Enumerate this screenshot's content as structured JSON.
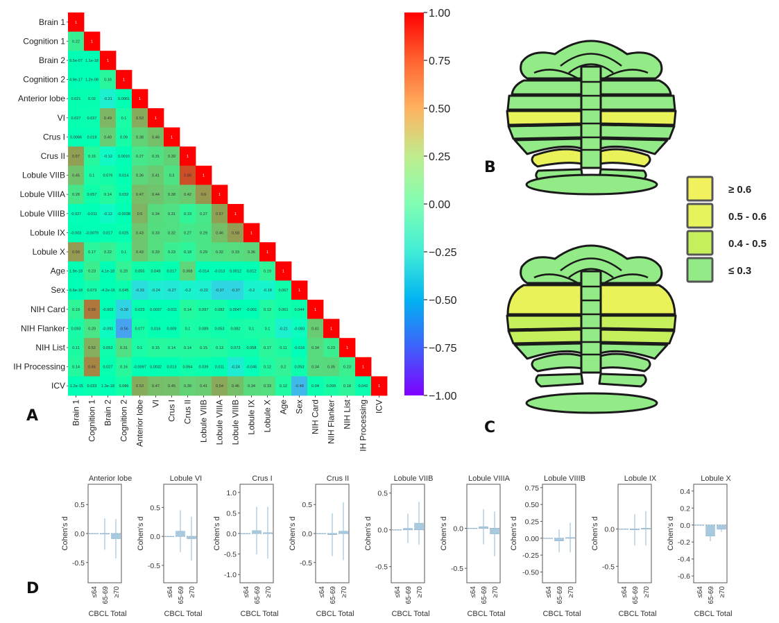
{
  "panel_labels": {
    "A": "A",
    "B": "B",
    "C": "C",
    "D": "D"
  },
  "colors": {
    "brain_outline": "#1a1a1a",
    "light_green": "#92eb86",
    "yellow_green": "#c6ef5c",
    "yellow": "#eaf25a",
    "bar_fill": "#a9c9de",
    "bar_stroke": "#8db5d0",
    "error_bar": "#a9c9de"
  },
  "legend_bins": [
    {
      "label": "≥ 0.6",
      "color": "#f2f25e"
    },
    {
      "label": "0.5 - 0.6",
      "color": "#e6f35a"
    },
    {
      "label": "0.4 - 0.5",
      "color": "#c6ef5c"
    },
    {
      "label": "≤ 0.3",
      "color": "#92eb86"
    }
  ],
  "brain_regions_B": {
    "anterior_lobe": "light green",
    "lobule_VI": "yellow",
    "crus_I": "light green",
    "crus_II": "light green",
    "lobule_VIIB": "light green",
    "lobule_VIIIA": "yellow",
    "lobule_VIIIB": "light green",
    "lobule_IX": "light green",
    "lobule_X": "light green"
  },
  "brain_regions_C": {
    "anterior_lobe": "light green",
    "lobule_VI": "yellow",
    "crus_I": "yellow green",
    "crus_II": "yellow green",
    "lobule_VIIB": "light green",
    "lobule_VIIIA": "light green",
    "lobule_VIIIB": "light green",
    "lobule_IX": "light green",
    "lobule_X": "light green"
  },
  "chart_data": [
    {
      "type": "heatmap",
      "panel": "A",
      "title": "",
      "variables": [
        "Brain 1",
        "Cognition 1",
        "Brain 2",
        "Cognition 2",
        "Anterior lobe",
        "VI",
        "Crus I",
        "Crus II",
        "Lobule VIIB",
        "Lobule VIIIA",
        "Lobule VIIIB",
        "Lobule IX",
        "Lobule X",
        "Age",
        "Sex",
        "NIH Card",
        "NIH Flanker",
        "NIH List",
        "IH Processing",
        "ICV"
      ],
      "cell_labels": [
        [
          "1"
        ],
        [
          "0.22",
          "1"
        ],
        [
          "9.5e-07",
          "1.1e-18",
          "1"
        ],
        [
          "4.9e-17",
          "1.2e-08",
          "0.16",
          "1"
        ],
        [
          "0.021",
          "0.02",
          "-0.21",
          "0.0061",
          "1"
        ],
        [
          "0.027",
          "0.037",
          "0.49",
          "0.1",
          "0.53",
          "1"
        ],
        [
          "0.0066",
          "0.019",
          "0.40",
          "0.09",
          "0.38",
          "0.46",
          "1"
        ],
        [
          "0.57",
          "0.15",
          "-0.12",
          "0.0010",
          "0.27",
          "0.31",
          "0.39",
          "1"
        ],
        [
          "0.45",
          "0.1",
          "0.076",
          "0.014",
          "0.36",
          "0.41",
          "0.3",
          "0.80",
          "1"
        ],
        [
          "0.28",
          "0.057",
          "0.14",
          "0.032",
          "0.47",
          "0.44",
          "0.38",
          "0.42",
          "0.6",
          "1"
        ],
        [
          "-0.027",
          "-0.011",
          "-0.12",
          "-0.0038",
          "0.5",
          "0.34",
          "0.31",
          "0.19",
          "0.27",
          "0.57",
          "1"
        ],
        [
          "-0.003",
          "-0.0079",
          "0.017",
          "0.025",
          "0.43",
          "0.33",
          "0.32",
          "0.27",
          "0.29",
          "0.46",
          "0.58",
          "1"
        ],
        [
          "0.59",
          "0.17",
          "0.22",
          "0.1",
          "0.43",
          "0.33",
          "0.23",
          "0.18",
          "0.29",
          "0.32",
          "0.33",
          "0.36",
          "1"
        ],
        [
          "1.9e-18",
          "0.23",
          "4.1e-18",
          "0.20",
          "0.055",
          "0.049",
          "0.017",
          "0.368",
          "-0.014",
          "-0.013",
          "0.0012",
          "0.012",
          "0.19",
          "1"
        ],
        [
          "6.6e-18",
          "0.073",
          "-4.2e-16",
          "0.045",
          "-0.33",
          "-0.24",
          "-0.27",
          "-0.2",
          "-0.22",
          "-0.37",
          "-0.37",
          "-0.2",
          "-0.18",
          "0.067",
          "1"
        ],
        [
          "0.19",
          "0.69",
          "-0.003",
          "-0.38",
          "0.023",
          "0.0037",
          "-0.011",
          "0.14",
          "0.097",
          "0.082",
          "0.0047",
          "-0.001",
          "0.12",
          "0.061",
          "0.044",
          "1"
        ],
        [
          "0.093",
          "0.29",
          "-0.091",
          "-0.56",
          "0.077",
          "0.016",
          "0.009",
          "0.1",
          "0.089",
          "0.053",
          "0.082",
          "0.1",
          "0.1",
          "-0.21",
          "-0.083",
          "0.41",
          "1"
        ],
        [
          "0.11",
          "0.52",
          "0.053",
          "0.31",
          "0.1",
          "0.15",
          "0.14",
          "0.14",
          "0.15",
          "0.13",
          "0.073",
          "0.058",
          "0.17",
          "0.11",
          "-0.016",
          "0.34",
          "0.23",
          "1"
        ],
        [
          "0.14",
          "0.65",
          "0.027",
          "0.16",
          "-0.0097",
          "0.0032",
          "0.013",
          "0.064",
          "0.039",
          "0.011",
          "-0.24",
          "-0.045",
          "0.12",
          "0.2",
          "0.053",
          "0.34",
          "0.35",
          "0.23",
          "1"
        ],
        [
          "-1.2e-15",
          "0.033",
          "1.3e-18",
          "0.086",
          "0.53",
          "0.47",
          "0.45",
          "0.39",
          "0.41",
          "0.54",
          "0.46",
          "0.34",
          "0.33",
          "0.12",
          "-0.48",
          "0.04",
          "0.095",
          "0.18",
          "0.042",
          "1"
        ]
      ],
      "cell_values": [
        [
          1
        ],
        [
          0.22,
          1
        ],
        [
          0,
          0,
          1
        ],
        [
          0,
          0,
          0.16,
          1
        ],
        [
          0.021,
          0.02,
          -0.21,
          0.0061,
          1
        ],
        [
          0.027,
          0.037,
          0.49,
          0.1,
          0.53,
          1
        ],
        [
          0.0066,
          0.019,
          0.4,
          0.09,
          0.38,
          0.46,
          1
        ],
        [
          0.57,
          0.15,
          -0.12,
          0.001,
          0.27,
          0.31,
          0.39,
          1
        ],
        [
          0.45,
          0.1,
          0.076,
          0.014,
          0.36,
          0.41,
          0.3,
          0.8,
          1
        ],
        [
          0.28,
          0.057,
          0.14,
          0.032,
          0.47,
          0.44,
          0.38,
          0.42,
          0.6,
          1
        ],
        [
          -0.027,
          -0.011,
          -0.12,
          -0.0038,
          0.5,
          0.34,
          0.31,
          0.19,
          0.27,
          0.57,
          1
        ],
        [
          -0.003,
          -0.0079,
          0.017,
          0.025,
          0.43,
          0.33,
          0.32,
          0.27,
          0.29,
          0.46,
          0.58,
          1
        ],
        [
          0.59,
          0.17,
          0.22,
          0.1,
          0.43,
          0.33,
          0.23,
          0.18,
          0.29,
          0.32,
          0.33,
          0.36,
          1
        ],
        [
          0,
          0.23,
          0,
          0.2,
          0.055,
          0.049,
          0.017,
          0.368,
          -0.014,
          -0.013,
          0.0012,
          0.012,
          0.19,
          1
        ],
        [
          0,
          0.073,
          0,
          0.045,
          -0.33,
          -0.24,
          -0.27,
          -0.2,
          -0.22,
          -0.37,
          -0.37,
          -0.2,
          -0.18,
          0.067,
          1
        ],
        [
          0.19,
          0.69,
          -0.003,
          -0.38,
          0.023,
          0.0037,
          -0.011,
          0.14,
          0.097,
          0.082,
          0.0047,
          -0.001,
          0.12,
          0.061,
          0.044,
          1
        ],
        [
          0.093,
          0.29,
          -0.091,
          -0.56,
          0.077,
          0.016,
          0.009,
          0.1,
          0.089,
          0.053,
          0.082,
          0.1,
          0.1,
          -0.21,
          -0.083,
          0.41,
          1
        ],
        [
          0.11,
          0.52,
          0.053,
          0.31,
          0.1,
          0.15,
          0.14,
          0.14,
          0.15,
          0.13,
          0.073,
          0.058,
          0.17,
          0.11,
          -0.016,
          0.34,
          0.23,
          1
        ],
        [
          0.14,
          0.65,
          0.027,
          0.16,
          -0.0097,
          0.0032,
          0.013,
          0.064,
          0.039,
          0.011,
          -0.24,
          -0.045,
          0.12,
          0.2,
          0.053,
          0.34,
          0.35,
          0.23,
          1
        ],
        [
          0,
          0.033,
          0,
          0.086,
          0.53,
          0.47,
          0.45,
          0.39,
          0.41,
          0.54,
          0.46,
          0.34,
          0.33,
          0.12,
          -0.48,
          0.04,
          0.095,
          0.18,
          0.042,
          1
        ]
      ],
      "colorbar": {
        "min": -1.0,
        "max": 1.0,
        "colormap": "rainbow",
        "ticks": [
          "1.00",
          "0.75",
          "0.50",
          "0.25",
          "0.00",
          "−0.25",
          "−0.50",
          "−0.75",
          "−1.00"
        ],
        "tick_values": [
          1.0,
          0.75,
          0.5,
          0.25,
          0.0,
          -0.25,
          -0.5,
          -0.75,
          -1.0
        ]
      }
    },
    {
      "type": "bar",
      "panel": "D",
      "title": "Anterior lobe",
      "xlabel": "CBCL Total",
      "ylabel": "Cohen's d",
      "categories": [
        "≤64",
        "65-69",
        "≥70"
      ],
      "values": [
        0,
        -0.01,
        -0.09
      ],
      "errors": [
        0,
        0.27,
        0.34
      ],
      "ylim": [
        -0.85,
        0.85
      ],
      "yticks": [
        0.5,
        0.0,
        -0.5
      ],
      "ytick_labels": [
        "0.5",
        "0.0",
        "-0.5"
      ]
    },
    {
      "type": "bar",
      "panel": "D",
      "title": "Lobule VI",
      "xlabel": "CBCL Total",
      "ylabel": "Cohen's d",
      "categories": [
        "≤64",
        "65-69",
        "≥70"
      ],
      "values": [
        0,
        0.09,
        -0.04
      ],
      "errors": [
        0,
        0.36,
        0.38
      ],
      "ylim": [
        -0.8,
        0.9
      ],
      "yticks": [
        0.5,
        0.0,
        -0.5
      ],
      "ytick_labels": [
        "0.5",
        "0.0",
        "-0.5"
      ]
    },
    {
      "type": "bar",
      "panel": "D",
      "title": "Crus I",
      "xlabel": "CBCL Total",
      "ylabel": "Cohen's d",
      "categories": [
        "≤64",
        "65-69",
        "≥70"
      ],
      "values": [
        0,
        0.07,
        0.02
      ],
      "errors": [
        0,
        0.58,
        0.63
      ],
      "ylim": [
        -1.2,
        1.2
      ],
      "yticks": [
        1.0,
        0.5,
        0.0,
        -0.5,
        -1.0
      ],
      "ytick_labels": [
        "1.0",
        "0.5",
        "0.0",
        "-0.5",
        "-1.0"
      ]
    },
    {
      "type": "bar",
      "panel": "D",
      "title": "Crus II",
      "xlabel": "CBCL Total",
      "ylabel": "Cohen's d",
      "categories": [
        "≤64",
        "65-69",
        "≥70"
      ],
      "values": [
        0,
        -0.02,
        0.04
      ],
      "errors": [
        0,
        0.37,
        0.5
      ],
      "ylim": [
        -0.85,
        0.85
      ],
      "yticks": [
        0.5,
        0.0,
        -0.5
      ],
      "ytick_labels": [
        "0.5",
        "0.0",
        "-0.5"
      ]
    },
    {
      "type": "bar",
      "panel": "D",
      "title": "Lobule VIIB",
      "xlabel": "CBCL Total",
      "ylabel": "Cohen's d",
      "categories": [
        "≤64",
        "65-69",
        "≥70"
      ],
      "values": [
        0,
        0.02,
        0.09
      ],
      "errors": [
        0,
        0.2,
        0.29
      ],
      "ylim": [
        -0.72,
        0.62
      ],
      "yticks": [
        0.5,
        0.0,
        -0.5
      ],
      "ytick_labels": [
        "0.5",
        "0.0",
        "-0.5"
      ]
    },
    {
      "type": "bar",
      "panel": "D",
      "title": "Lobule VIIIA",
      "xlabel": "CBCL Total",
      "ylabel": "Cohen's d",
      "categories": [
        "≤64",
        "65-69",
        "≥70"
      ],
      "values": [
        0,
        0.02,
        -0.07
      ],
      "errors": [
        0,
        0.22,
        0.28
      ],
      "ylim": [
        -0.68,
        0.55
      ],
      "yticks": [
        0.0,
        -0.5
      ],
      "ytick_labels": [
        "0.0",
        "-0.5"
      ]
    },
    {
      "type": "bar",
      "panel": "D",
      "title": "Lobule VIIIB",
      "xlabel": "CBCL Total",
      "ylabel": "Cohen's d",
      "categories": [
        "≤64",
        "65-69",
        "≥70"
      ],
      "values": [
        0,
        -0.04,
        0.01
      ],
      "errors": [
        0,
        0.17,
        0.22
      ],
      "ylim": [
        -0.66,
        0.8
      ],
      "yticks": [
        0.75,
        0.5,
        0.25,
        0.0,
        -0.25,
        -0.5
      ],
      "ytick_labels": [
        "0.75",
        "0.50",
        "0.25",
        "0.00",
        "-0.25",
        "-0.50"
      ]
    },
    {
      "type": "bar",
      "panel": "D",
      "title": "Lobule IX",
      "xlabel": "CBCL Total",
      "ylabel": "Cohen's d",
      "categories": [
        "≤64",
        "65-69",
        "≥70"
      ],
      "values": [
        0,
        -0.01,
        0.01
      ],
      "errors": [
        0,
        0.21,
        0.23
      ],
      "ylim": [
        -0.72,
        0.6
      ],
      "yticks": [
        0.0,
        -0.5
      ],
      "ytick_labels": [
        "0.0",
        "-0.5"
      ]
    },
    {
      "type": "bar",
      "panel": "D",
      "title": "Lobule X",
      "xlabel": "CBCL Total",
      "ylabel": "Cohen's d",
      "categories": [
        "≤64",
        "65-69",
        "≥70"
      ],
      "values": [
        0,
        -0.13,
        -0.05
      ],
      "errors": [
        0,
        0.06,
        0.03
      ],
      "ylim": [
        -0.68,
        0.48
      ],
      "yticks": [
        0.4,
        0.2,
        0.0,
        -0.2,
        -0.4,
        -0.6
      ],
      "ytick_labels": [
        "0.4",
        "0.2",
        "0.0",
        "-0.2",
        "-0.4",
        "-0.6"
      ]
    }
  ]
}
